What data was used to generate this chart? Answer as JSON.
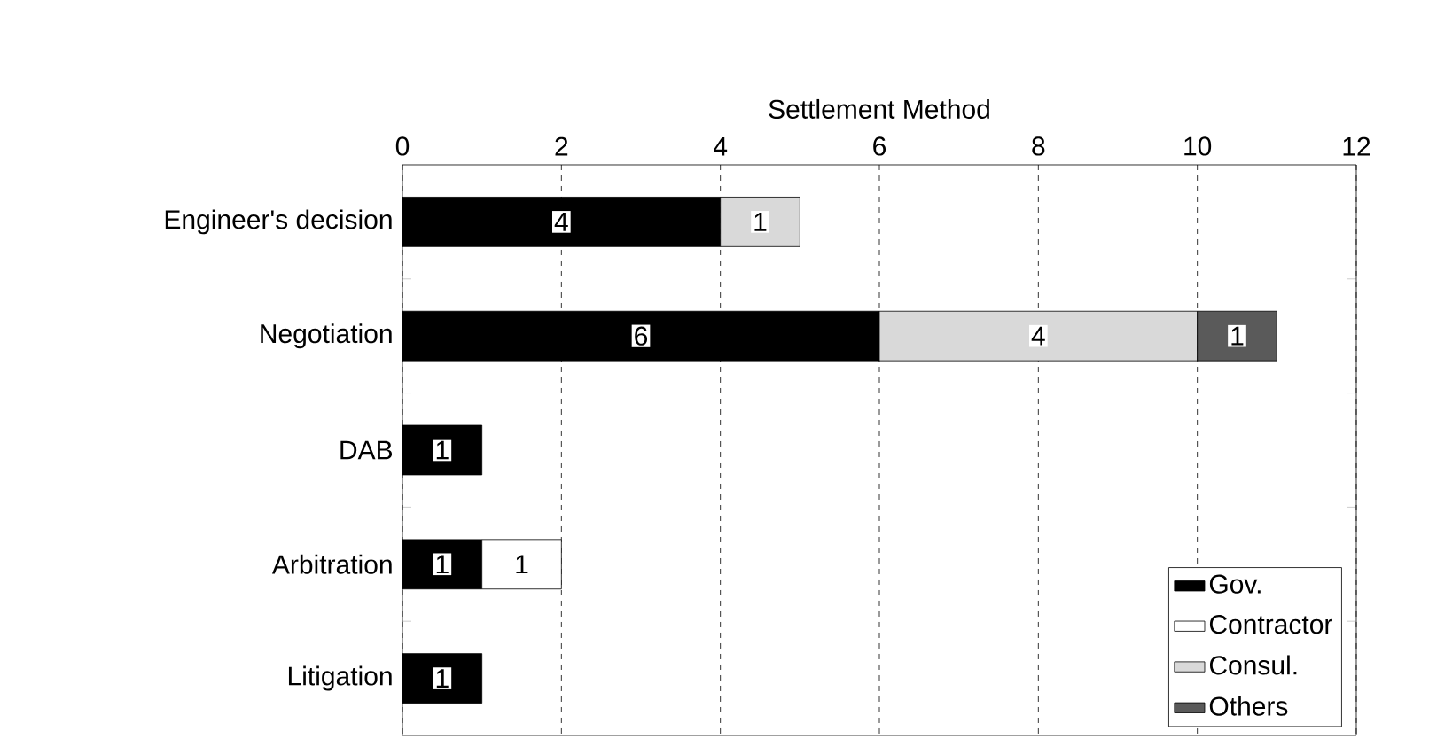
{
  "chart_data": {
    "type": "bar",
    "orientation": "horizontal",
    "stacked": true,
    "xlabel": "Settlement Method",
    "categories": [
      "Engineer's decision",
      "Negotiation",
      "DAB",
      "Arbitration",
      "Litigation"
    ],
    "series": [
      {
        "name": "Gov.",
        "color": "#000000",
        "values": [
          4,
          6,
          1,
          1,
          1
        ],
        "value_labels": [
          "4",
          "6",
          "1",
          "1",
          "1"
        ]
      },
      {
        "name": "Contractor",
        "color": "#ffffff",
        "values": [
          null,
          null,
          null,
          1,
          null
        ],
        "value_labels": [
          null,
          null,
          null,
          "1",
          null
        ]
      },
      {
        "name": "Consul.",
        "color": "#d9d9d9",
        "values": [
          1,
          4,
          null,
          null,
          null
        ],
        "value_labels": [
          "1",
          "4",
          null,
          null,
          null
        ]
      },
      {
        "name": "Others",
        "color": "#5a5a5a",
        "values": [
          null,
          1,
          null,
          null,
          null
        ],
        "value_labels": [
          null,
          "1",
          null,
          null,
          null
        ]
      }
    ],
    "xlim": [
      0,
      12
    ],
    "xticks": [
      0,
      2,
      4,
      6,
      8,
      10,
      12
    ],
    "grid": "x",
    "legend": "bottom right"
  }
}
